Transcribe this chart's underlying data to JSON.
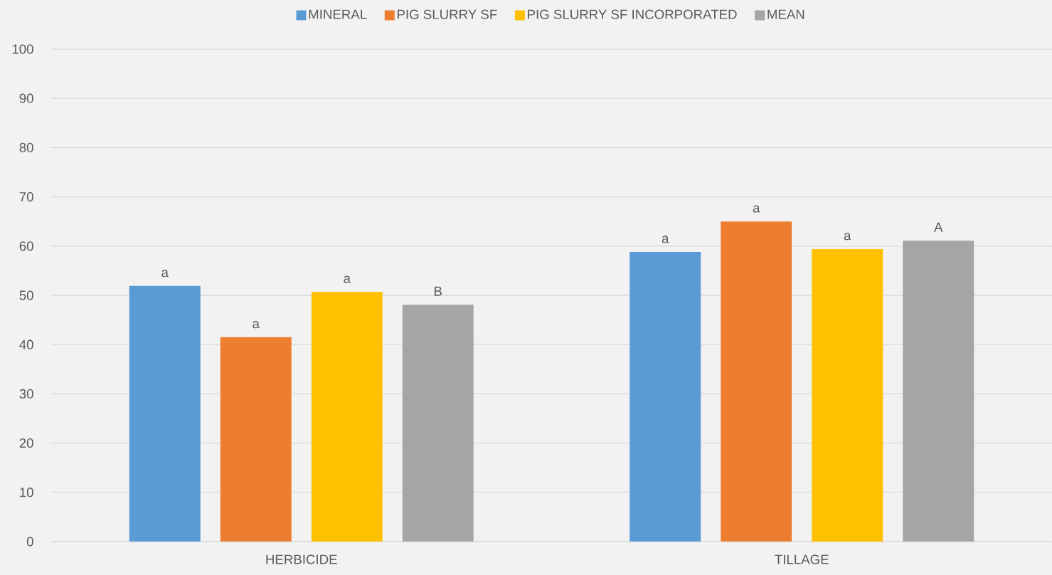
{
  "chart_data": {
    "type": "bar",
    "categories": [
      "HERBICIDE",
      "TILLAGE"
    ],
    "series": [
      {
        "name": "MINERAL",
        "color": "#5b9bd5",
        "values": [
          51.9,
          58.8
        ],
        "value_labels": [
          "a",
          "a"
        ]
      },
      {
        "name": "PIG SLURRY SF",
        "color": "#ed7d31",
        "values": [
          41.5,
          65.0
        ],
        "value_labels": [
          "a",
          "a"
        ]
      },
      {
        "name": "PIG SLURRY SF INCORPORATED",
        "color": "#ffc000",
        "values": [
          50.7,
          59.4
        ],
        "value_labels": [
          "a",
          "a"
        ]
      },
      {
        "name": "MEAN",
        "color": "#a5a5a5",
        "values": [
          48.1,
          61.1
        ],
        "value_labels": [
          "B",
          "A"
        ]
      }
    ],
    "ylim": [
      0,
      100
    ],
    "yticks": [
      0,
      10,
      20,
      30,
      40,
      50,
      60,
      70,
      80,
      90,
      100
    ],
    "grid": "y",
    "legend": "top"
  }
}
